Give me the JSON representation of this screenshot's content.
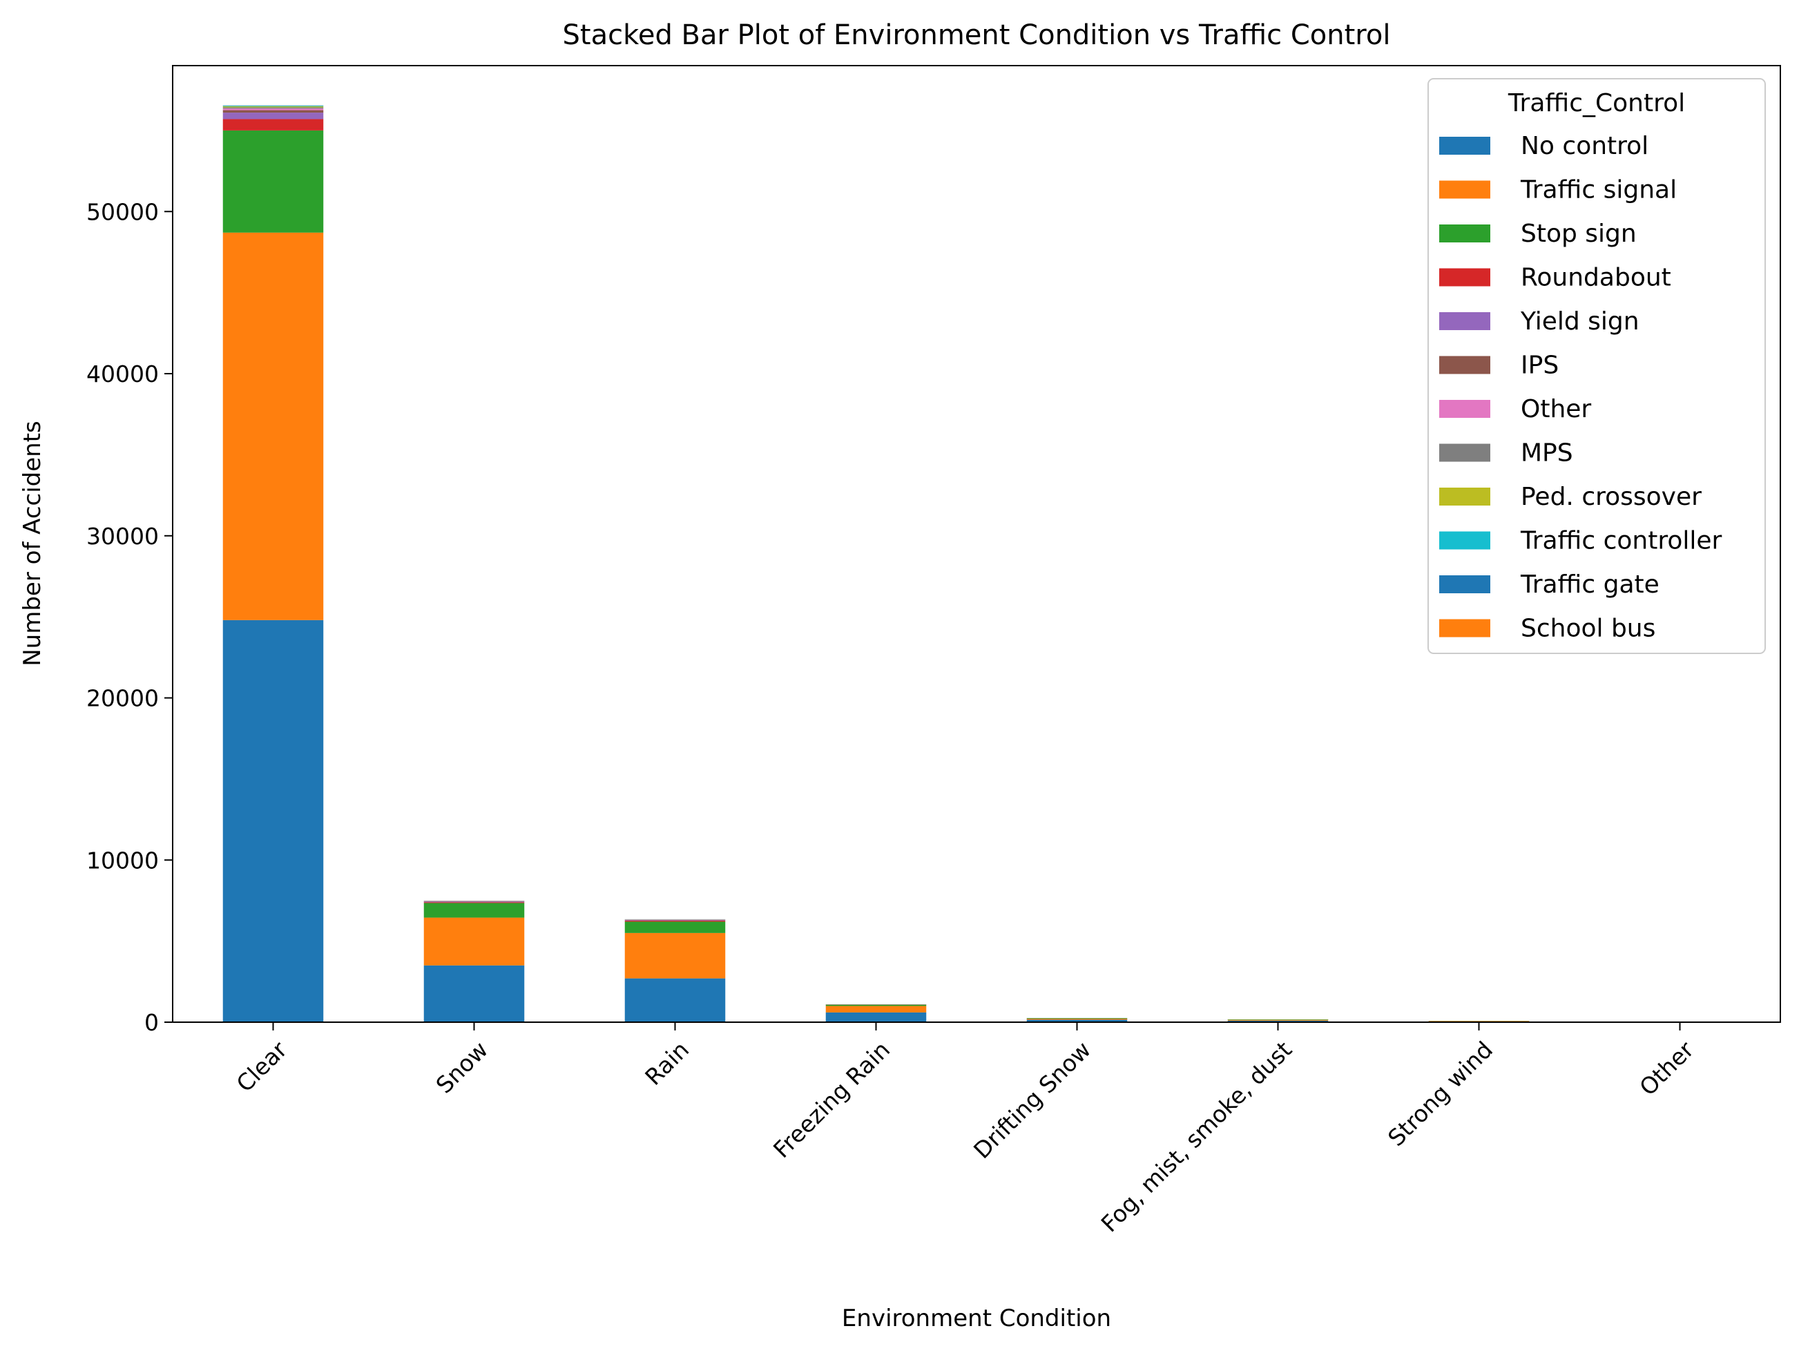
{
  "chart_data": {
    "type": "bar",
    "stacked": true,
    "title": "Stacked Bar Plot of Environment Condition vs Traffic Control",
    "xlabel": "Environment Condition",
    "ylabel": "Number of Accidents",
    "ylim": [
      0,
      59000
    ],
    "yticks": [
      0,
      10000,
      20000,
      30000,
      40000,
      50000
    ],
    "grid": false,
    "legend_title": "Traffic_Control",
    "legend_position": "top-right",
    "categories": [
      "Clear",
      "Snow",
      "Rain",
      "Freezing Rain",
      "Drifting Snow",
      "Fog, mist, smoke, dust",
      "Strong wind",
      "Other"
    ],
    "series": [
      {
        "name": "No control",
        "color": "#1f77b4",
        "values": [
          24800,
          3500,
          2700,
          600,
          150,
          90,
          40,
          10
        ]
      },
      {
        "name": "Traffic signal",
        "color": "#ff7f0e",
        "values": [
          23900,
          2950,
          2800,
          400,
          60,
          50,
          30,
          8
        ]
      },
      {
        "name": "Stop sign",
        "color": "#2ca02c",
        "values": [
          6300,
          900,
          700,
          80,
          40,
          30,
          10,
          3
        ]
      },
      {
        "name": "Roundabout",
        "color": "#d62728",
        "values": [
          700,
          50,
          60,
          10,
          3,
          2,
          1,
          0
        ]
      },
      {
        "name": "Yield sign",
        "color": "#9467bd",
        "values": [
          400,
          40,
          40,
          5,
          2,
          1,
          1,
          0
        ]
      },
      {
        "name": "IPS",
        "color": "#8c564b",
        "values": [
          150,
          20,
          15,
          3,
          1,
          1,
          0,
          0
        ]
      },
      {
        "name": "Other",
        "color": "#e377c2",
        "values": [
          100,
          15,
          12,
          2,
          1,
          1,
          0,
          0
        ]
      },
      {
        "name": "MPS",
        "color": "#7f7f7f",
        "values": [
          80,
          10,
          10,
          2,
          1,
          0,
          0,
          0
        ]
      },
      {
        "name": "Ped. crossover",
        "color": "#bcbd22",
        "values": [
          60,
          8,
          8,
          1,
          0,
          0,
          0,
          0
        ]
      },
      {
        "name": "Traffic controller",
        "color": "#17becf",
        "values": [
          40,
          5,
          5,
          1,
          0,
          0,
          0,
          0
        ]
      },
      {
        "name": "Traffic gate",
        "color": "#1f77b4",
        "values": [
          10,
          1,
          1,
          0,
          0,
          0,
          0,
          0
        ]
      },
      {
        "name": "School bus",
        "color": "#ff7f0e",
        "values": [
          5,
          1,
          1,
          0,
          0,
          0,
          0,
          0
        ]
      }
    ]
  }
}
